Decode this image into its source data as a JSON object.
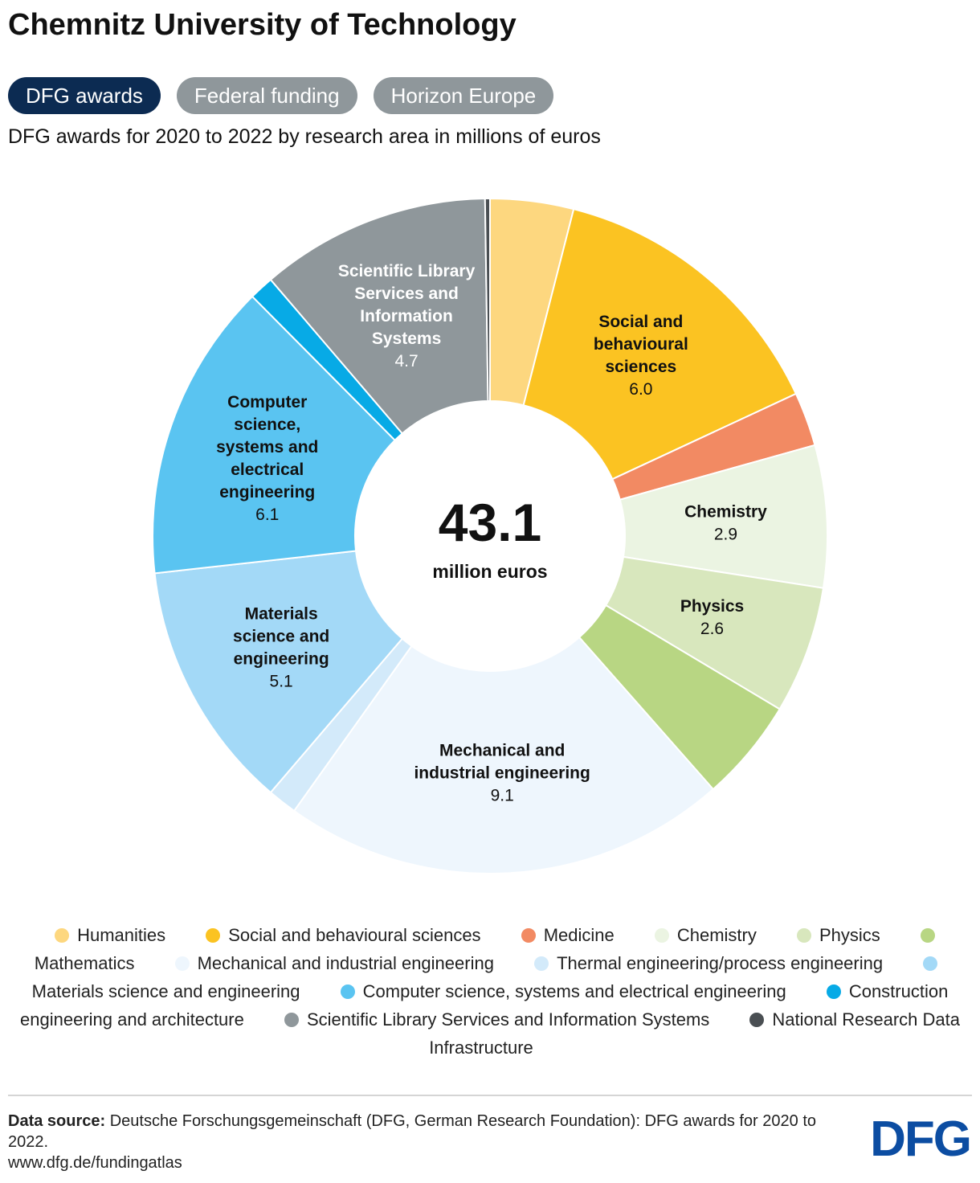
{
  "title": "Chemnitz University of Technology",
  "tabs": [
    {
      "label": "DFG awards",
      "active": true
    },
    {
      "label": "Federal funding",
      "active": false
    },
    {
      "label": "Horizon Europe",
      "active": false
    }
  ],
  "subtitle": "DFG awards for 2020 to 2022 by research area in millions of euros",
  "center": {
    "value": "43.1",
    "unit": "million euros"
  },
  "chart_data": {
    "type": "pie",
    "total": 43.1,
    "slices": [
      {
        "name": "Humanities",
        "value": 1.7,
        "color": "#fdd77f",
        "label": "",
        "value_label": ""
      },
      {
        "name": "Social and behavioural sciences",
        "value": 6.0,
        "color": "#fbc322",
        "label": "Social and|behavioural|sciences",
        "value_label": "6.0"
      },
      {
        "name": "Medicine",
        "value": 1.1,
        "color": "#f28a63",
        "label": "",
        "value_label": ""
      },
      {
        "name": "Chemistry",
        "value": 2.9,
        "color": "#ebf4e2",
        "label": "Chemistry",
        "value_label": "2.9"
      },
      {
        "name": "Physics",
        "value": 2.6,
        "color": "#d8e7bd",
        "label": "Physics",
        "value_label": "2.6"
      },
      {
        "name": "Mathematics",
        "value": 2.1,
        "color": "#b8d683",
        "label": "",
        "value_label": ""
      },
      {
        "name": "Mechanical and industrial engineering",
        "value": 9.1,
        "color": "#eef6fd",
        "label": "Mechanical and|industrial engineering",
        "value_label": "9.1"
      },
      {
        "name": "Thermal engineering/process engineering",
        "value": 0.6,
        "color": "#d3eafa",
        "label": "",
        "value_label": ""
      },
      {
        "name": "Materials science and engineering",
        "value": 5.1,
        "color": "#a3d9f7",
        "label": "Materials|science and|engineering",
        "value_label": "5.1"
      },
      {
        "name": "Computer science, systems and electrical engineering",
        "value": 6.1,
        "color": "#5ac4f1",
        "label": "Computer|science,|systems and|electrical|engineering",
        "value_label": "6.1"
      },
      {
        "name": "Construction engineering and architecture",
        "value": 0.5,
        "color": "#07aae6",
        "label": "",
        "value_label": ""
      },
      {
        "name": "Scientific Library Services and Information Systems",
        "value": 4.7,
        "color": "#8f979b",
        "label": "Scientific Library|Services and|Information|Systems",
        "value_label": "4.7"
      },
      {
        "name": "National Research Data Infrastructure",
        "value": 0.1,
        "color": "#4a4f53",
        "label": "",
        "value_label": ""
      }
    ]
  },
  "legend": [
    {
      "label": "Humanities",
      "color": "#fdd77f"
    },
    {
      "label": "Social and behavioural sciences",
      "color": "#fbc322"
    },
    {
      "label": "Medicine",
      "color": "#f28a63"
    },
    {
      "label": "Chemistry",
      "color": "#ebf4e2"
    },
    {
      "label": "Physics",
      "color": "#d8e7bd"
    },
    {
      "label": "Mathematics",
      "color": "#b8d683"
    },
    {
      "label": "Mechanical and industrial engineering",
      "color": "#eef6fd"
    },
    {
      "label": "Thermal engineering/process engineering",
      "color": "#d3eafa"
    },
    {
      "label": "Materials science and engineering",
      "color": "#a3d9f7"
    },
    {
      "label": "Computer science, systems and electrical engineering",
      "color": "#5ac4f1"
    },
    {
      "label": "Construction engineering and architecture",
      "color": "#07aae6"
    },
    {
      "label": "Scientific Library Services and Information Systems",
      "color": "#8f979b"
    },
    {
      "label": "National Research Data Infrastructure",
      "color": "#4a4f53"
    }
  ],
  "source": {
    "label": "Data source:",
    "text": "Deutsche Forschungsgemeinschaft (DFG, German Research Foundation): DFG awards for 2020 to 2022.",
    "url": "www.dfg.de/fundingatlas"
  },
  "logo": "DFG"
}
